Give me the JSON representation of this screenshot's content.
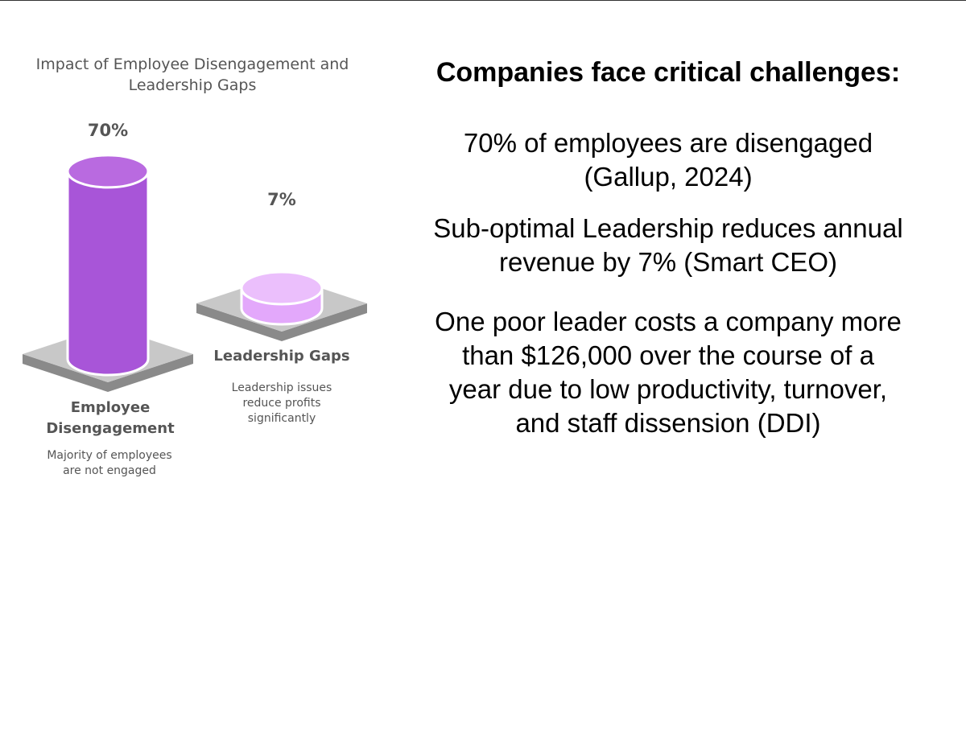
{
  "chart_data": {
    "type": "bar",
    "title_lines": [
      "Impact of Employee Disengagement and",
      "Leadership Gaps"
    ],
    "categories": [
      "Employee Disengagement",
      "Leadership Gaps"
    ],
    "values": [
      70,
      7
    ],
    "value_labels": [
      "70%",
      "7%"
    ],
    "category_label_lines": [
      [
        "Employee",
        "Disengagement"
      ],
      [
        "Leadership Gaps"
      ]
    ],
    "descriptions": [
      [
        "Majority of employees",
        "are not engaged"
      ],
      [
        "Leadership issues",
        "reduce profits",
        "significantly"
      ]
    ],
    "colors": {
      "bar1_body": "#a855d8",
      "bar1_top": "#b96ae0",
      "bar2_body": "#e3a8fb",
      "bar2_top": "#ebbffc",
      "platform_top": "#c8c8c8",
      "platform_side": "#8a8a8a",
      "text": "#555555"
    }
  },
  "panel": {
    "heading": "Companies face critical challenges:",
    "stat1_lines": [
      "70% of employees are disengaged",
      "(Gallup, 2024)"
    ],
    "stat2_lines": [
      "Sub-optimal Leadership reduces annual",
      "revenue by 7% (Smart CEO)"
    ],
    "stat3_lines": [
      "One poor leader costs a company more",
      "than $126,000 over the course of a",
      "year due to low productivity, turnover,",
      "and staff dissension (DDI)"
    ]
  }
}
